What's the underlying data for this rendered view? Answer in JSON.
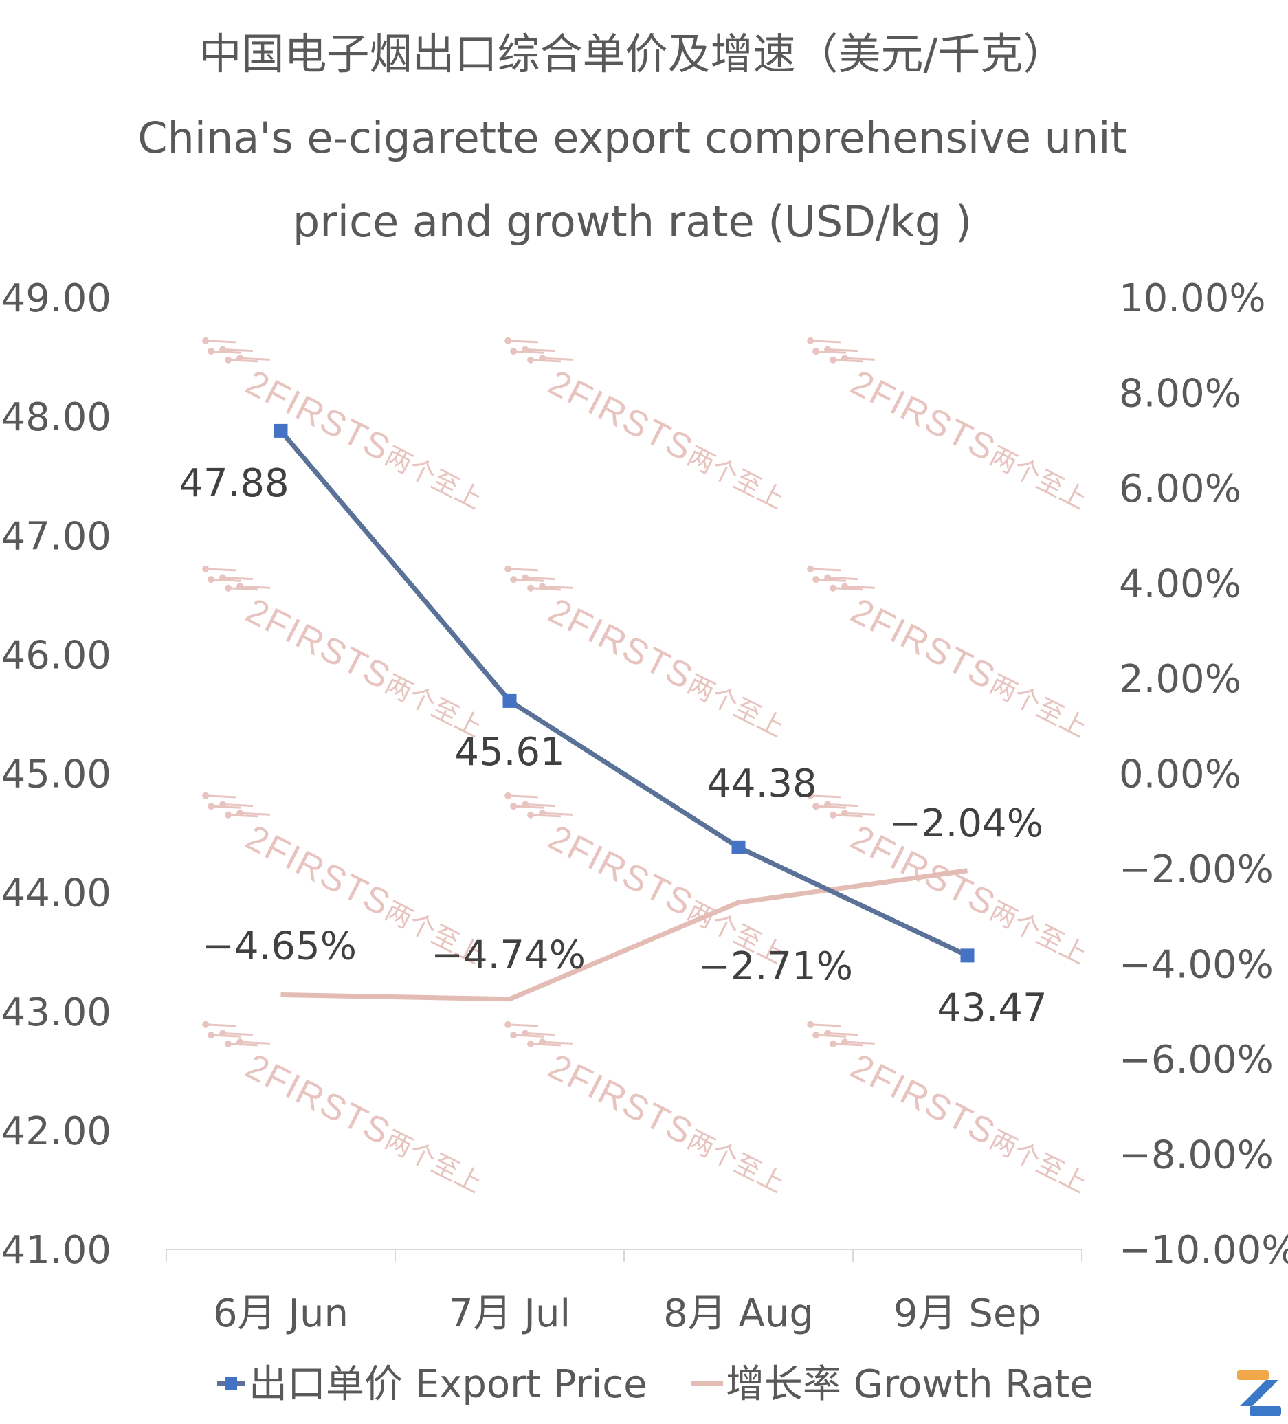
{
  "chart_data": {
    "type": "line",
    "title": "中国电子烟出口综合单价及增速（美元/千克）",
    "subtitle_line1": "China's e-cigarette export comprehensive unit",
    "subtitle_line2": "price and growth rate (USD/kg )",
    "categories": [
      "6月 Jun",
      "7月 Jul",
      "8月 Aug",
      "9月 Sep"
    ],
    "y_left": {
      "ylim": [
        41,
        49
      ],
      "ticks": [
        "41.00",
        "42.00",
        "43.00",
        "44.00",
        "45.00",
        "46.00",
        "47.00",
        "48.00",
        "49.00"
      ]
    },
    "y_right": {
      "ylim": [
        -10,
        10
      ],
      "ticks": [
        "-10.00%",
        "-8.00%",
        "-6.00%",
        "-4.00%",
        "-2.00%",
        "0.00%",
        "2.00%",
        "4.00%",
        "6.00%",
        "8.00%",
        "10.00%"
      ]
    },
    "series": [
      {
        "name": "出口单价 Export Price",
        "axis": "left",
        "values": [
          47.88,
          45.61,
          44.38,
          43.47
        ],
        "labels": [
          "47.88",
          "45.61",
          "44.38",
          "43.47"
        ],
        "color": "#5a7198",
        "marker_color": "#4472c4"
      },
      {
        "name": "增长率 Growth Rate",
        "axis": "right",
        "values": [
          -4.65,
          -4.74,
          -2.71,
          -2.04
        ],
        "labels": [
          "-4.65%",
          "-4.74%",
          "-2.71%",
          "-2.04%"
        ],
        "color": "#e3bcb6"
      }
    ],
    "legend_position": "bottom",
    "grid": false,
    "watermark": {
      "text": "2FIRSTS",
      "text_cn": "两个至上"
    }
  }
}
